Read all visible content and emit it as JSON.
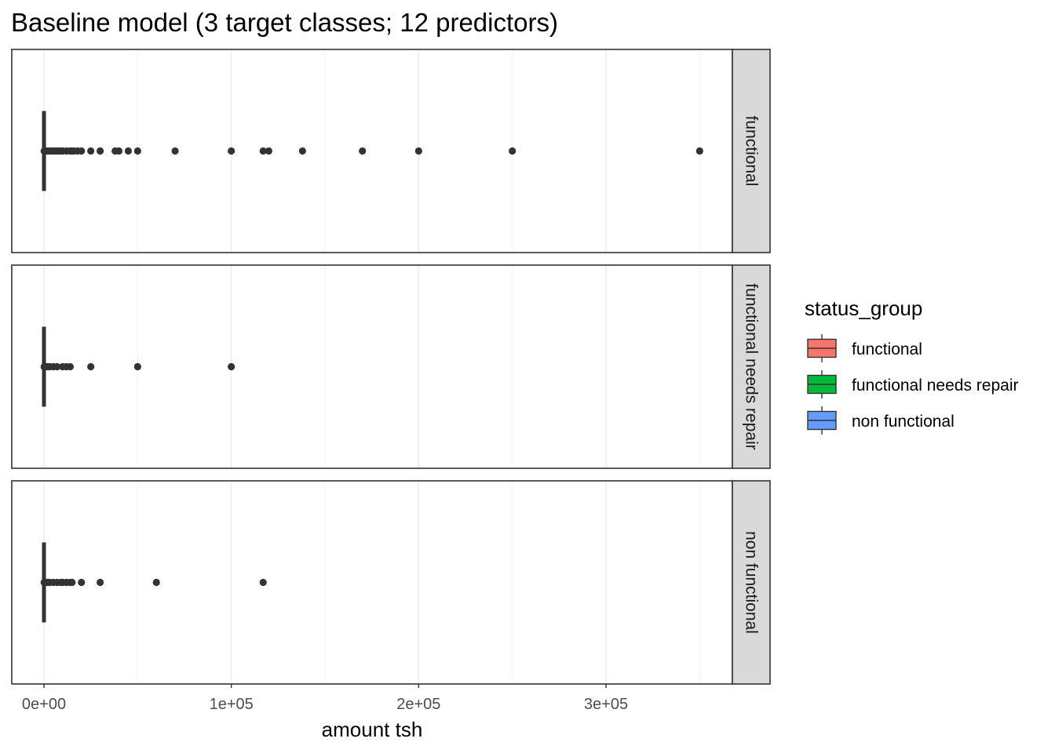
{
  "chart_data": {
    "type": "boxplot",
    "title": "Baseline model (3 target classes; 12 predictors)",
    "xlabel": "amount tsh",
    "ylabel": "",
    "xlim": [
      -17500,
      367500
    ],
    "x_ticks": [
      0,
      100000,
      200000,
      300000
    ],
    "x_tick_labels": [
      "0e+00",
      "1e+05",
      "2e+05",
      "3e+05"
    ],
    "grid": true,
    "facets": [
      "functional",
      "functional needs repair",
      "non functional"
    ],
    "legend": {
      "title": "status_group",
      "placement": "right",
      "entries": [
        {
          "label": "functional",
          "color": "#F8766D"
        },
        {
          "label": "functional needs repair",
          "color": "#00BA38"
        },
        {
          "label": "non functional",
          "color": "#619CFF"
        }
      ]
    },
    "series": [
      {
        "facet": "functional",
        "box": {
          "min": 0,
          "q1": 0,
          "median": 0,
          "q3": 20,
          "whisker_high": 50
        },
        "outliers": [
          100,
          300,
          500,
          1000,
          2000,
          3000,
          4000,
          5000,
          6000,
          7000,
          8000,
          9000,
          10000,
          12000,
          14000,
          15000,
          16000,
          18000,
          20000,
          25000,
          30000,
          38000,
          40000,
          45000,
          50000,
          70000,
          100000,
          117000,
          120000,
          138000,
          170000,
          200000,
          250000,
          350000
        ]
      },
      {
        "facet": "functional needs repair",
        "box": {
          "min": 0,
          "q1": 0,
          "median": 0,
          "q3": 0,
          "whisker_high": 0
        },
        "outliers": [
          100,
          500,
          1000,
          2000,
          3000,
          5000,
          7000,
          10000,
          12000,
          14000,
          25000,
          50000,
          100000
        ]
      },
      {
        "facet": "non functional",
        "box": {
          "min": 0,
          "q1": 0,
          "median": 0,
          "q3": 0,
          "whisker_high": 0
        },
        "outliers": [
          100,
          500,
          1000,
          2000,
          3000,
          5000,
          7000,
          9000,
          10000,
          12000,
          14000,
          15000,
          20000,
          30000,
          60000,
          117000
        ]
      }
    ]
  }
}
